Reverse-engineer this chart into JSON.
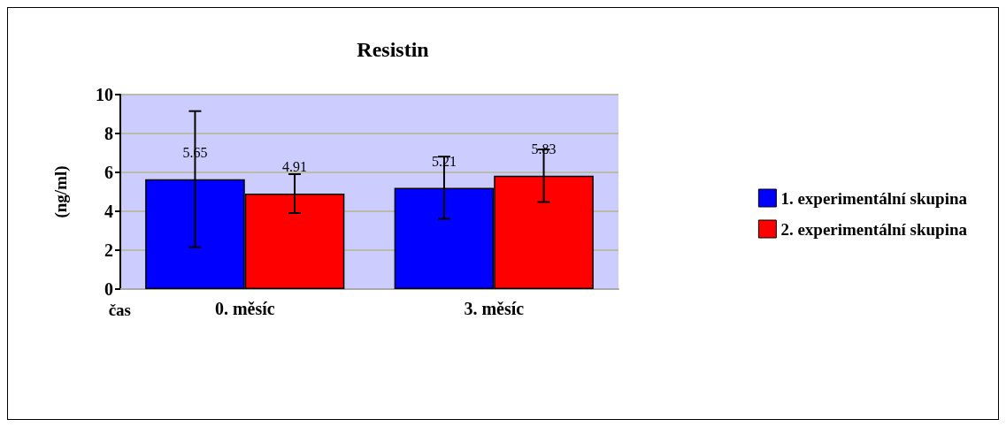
{
  "chart_data": {
    "type": "bar",
    "title": "Resistin",
    "xlabel": "čas",
    "ylabel": "(ng/ml)",
    "categories": [
      "0. měsíc",
      "3. měsíc"
    ],
    "series": [
      {
        "name": "1. experimentální skupina",
        "color": "#0000ff",
        "values": [
          5.65,
          5.21
        ],
        "errors": [
          3.5,
          1.6
        ]
      },
      {
        "name": "2. experimentální skupina",
        "color": "#ff0000",
        "values": [
          4.91,
          5.83
        ],
        "errors": [
          1.0,
          1.35
        ]
      }
    ],
    "ylim": [
      0,
      10
    ],
    "yticks": [
      0,
      2,
      4,
      6,
      8,
      10
    ],
    "grid": "y",
    "legend": "right",
    "data_labels": true
  }
}
